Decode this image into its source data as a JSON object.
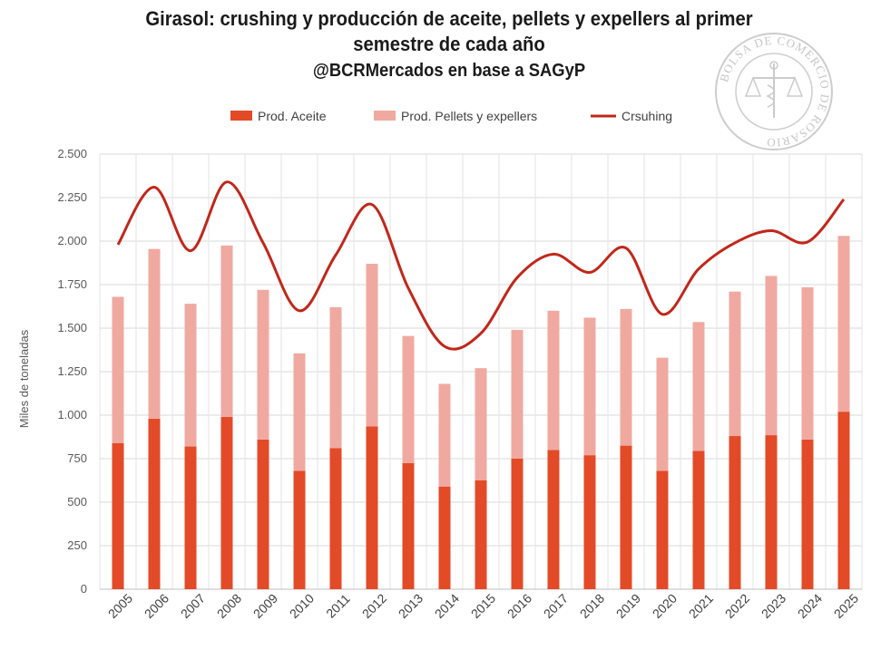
{
  "title_line1": "Girasol: crushing y producción de aceite, pellets y expellers al primer",
  "title_line2": "semestre de cada año",
  "subtitle": "@BCRMercados en base a SAGyP",
  "watermark_text": "BOLSA DE COMERCIO DE ROSARIO",
  "chart_data": {
    "type": "bar",
    "stacked": true,
    "ylabel": "Miles de toneladas",
    "xlabel": "",
    "ylim": [
      0,
      2500
    ],
    "ytick_labels": [
      "0",
      "250",
      "500",
      "750",
      "1.000",
      "1.250",
      "1.500",
      "1.750",
      "2.000",
      "2.250",
      "2.500"
    ],
    "ytick_values": [
      0,
      250,
      500,
      750,
      1000,
      1250,
      1500,
      1750,
      2000,
      2250,
      2500
    ],
    "categories": [
      "2005",
      "2006",
      "2007",
      "2008",
      "2009",
      "2010",
      "2011",
      "2012",
      "2013",
      "2014",
      "2015",
      "2016",
      "2017",
      "2018",
      "2019",
      "2020",
      "2021",
      "2022",
      "2023",
      "2024",
      "2025"
    ],
    "series": [
      {
        "name": "Prod. Aceite",
        "kind": "bar",
        "color": "#e34a27",
        "values": [
          840,
          980,
          820,
          990,
          860,
          680,
          810,
          935,
          725,
          590,
          625,
          750,
          800,
          770,
          825,
          680,
          795,
          880,
          885,
          860,
          1020
        ]
      },
      {
        "name": "Prod. Pellets y expellers",
        "kind": "bar",
        "color": "#f0a9a0",
        "values": [
          840,
          975,
          820,
          985,
          860,
          675,
          810,
          935,
          730,
          590,
          645,
          740,
          800,
          790,
          785,
          650,
          740,
          830,
          915,
          875,
          1010
        ]
      },
      {
        "name": "Crsuhing",
        "kind": "line",
        "color": "#c1271a",
        "values": [
          1980,
          2310,
          1945,
          2340,
          1990,
          1600,
          1920,
          2210,
          1730,
          1395,
          1470,
          1790,
          1925,
          1820,
          1960,
          1580,
          1840,
          1990,
          2060,
          1995,
          2240
        ]
      }
    ],
    "legend_position": "top",
    "grid": true
  }
}
